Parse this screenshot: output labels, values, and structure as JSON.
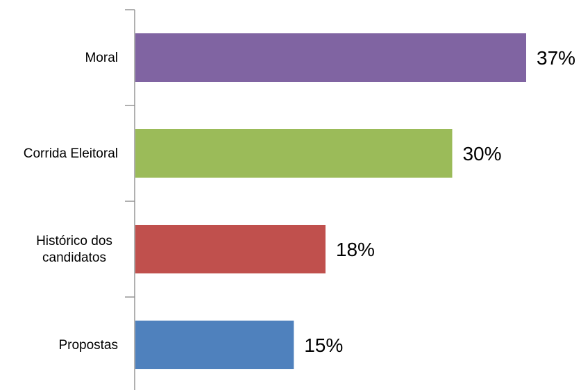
{
  "chart_data": {
    "type": "bar",
    "orientation": "horizontal",
    "categories": [
      "Moral",
      "Corrida Eleitoral",
      "Histórico dos candidatos",
      "Propostas"
    ],
    "category_lines": [
      [
        "Moral"
      ],
      [
        "Corrida Eleitoral"
      ],
      [
        "Histórico dos",
        "candidatos"
      ],
      [
        "Propostas"
      ]
    ],
    "values": [
      37,
      30,
      18,
      15
    ],
    "value_labels": [
      "37%",
      "30%",
      "18%",
      "15%"
    ],
    "colors": [
      "#8064A2",
      "#9BBB59",
      "#C0504D",
      "#4F81BD"
    ],
    "title": "",
    "xlabel": "",
    "ylabel": "",
    "xlim": [
      0,
      37
    ],
    "grid": false,
    "legend": "none"
  }
}
